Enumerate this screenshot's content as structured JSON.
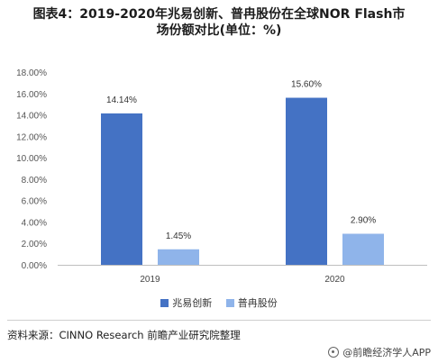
{
  "title": {
    "line1": "图表4：2019-2020年兆易创新、普冉股份在全球NOR Flash市",
    "line2": "场份额对比(单位：%)"
  },
  "colors": {
    "series1": "#4472c4",
    "series2": "#8fb4ea",
    "axis": "#bfbfbf"
  },
  "chart_data": {
    "type": "bar",
    "categories": [
      "2019",
      "2020"
    ],
    "series": [
      {
        "name": "兆易创新",
        "values": [
          14.14,
          15.6
        ],
        "labels": [
          "14.14%",
          "15.60%"
        ]
      },
      {
        "name": "普冉股份",
        "values": [
          1.45,
          2.9
        ],
        "labels": [
          "1.45%",
          "2.90%"
        ]
      }
    ],
    "ylim": [
      0,
      18
    ],
    "yticks": [
      "0.00%",
      "2.00%",
      "4.00%",
      "6.00%",
      "8.00%",
      "10.00%",
      "12.00%",
      "14.00%",
      "16.00%",
      "18.00%"
    ],
    "ytick_values": [
      0,
      2,
      4,
      6,
      8,
      10,
      12,
      14,
      16,
      18
    ],
    "grid": false,
    "legend_position": "bottom"
  },
  "source": "资料来源：CINNO Research 前瞻产业研究院整理",
  "brand": "@前瞻经济学人APP"
}
